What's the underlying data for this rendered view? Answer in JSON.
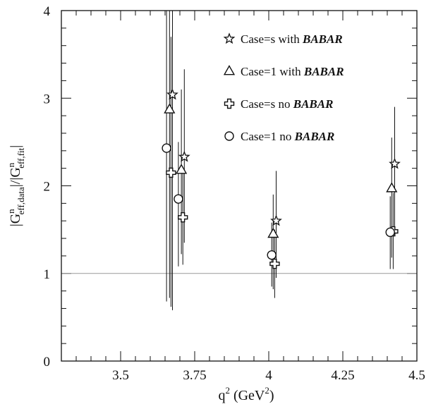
{
  "chart_data": {
    "type": "scatter",
    "xlabel": "q",
    "xlabel_sup": "2",
    "xlabel_unit_open": " (GeV",
    "xlabel_unit_sup": "2",
    "xlabel_unit_close": ")",
    "ylabel_parts": {
      "num_base": "|G",
      "num_sup": "n",
      "num_sub": "eff,data",
      "slash": "|/|G",
      "den_sup": "n",
      "den_sub": "eff,fit",
      "end": "|"
    },
    "xlim": [
      3.3,
      4.5
    ],
    "ylim": [
      0,
      4
    ],
    "x_ticks": [
      {
        "value": 3.5,
        "label": "3.5"
      },
      {
        "value": 3.75,
        "label": "3.75"
      },
      {
        "value": 4.0,
        "label": "4"
      },
      {
        "value": 4.25,
        "label": "4.25"
      },
      {
        "value": 4.5,
        "label": "4.5"
      }
    ],
    "y_ticks": [
      {
        "value": 0,
        "label": "0"
      },
      {
        "value": 1,
        "label": "1"
      },
      {
        "value": 2,
        "label": "2"
      },
      {
        "value": 3,
        "label": "3"
      },
      {
        "value": 4,
        "label": "4"
      }
    ],
    "reference_line": 1,
    "grid": false,
    "legend_placement": "top-right",
    "series": [
      {
        "name": "Case=s with BABAR",
        "name_prefix": "Case=s with ",
        "name_bold": "BABAR",
        "marker": "star",
        "points": [
          {
            "x": 3.675,
            "y": 3.04,
            "ylow": 0.58,
            "yhigh": 4.0
          },
          {
            "x": 3.715,
            "y": 2.33,
            "ylow": 1.35,
            "yhigh": 3.33
          },
          {
            "x": 4.025,
            "y": 1.6,
            "ylow": 0.95,
            "yhigh": 2.17
          },
          {
            "x": 4.425,
            "y": 2.25,
            "ylow": 1.5,
            "yhigh": 2.9
          }
        ]
      },
      {
        "name": "Case=1 with BABAR",
        "name_prefix": "Case=1 with ",
        "name_bold": "BABAR",
        "marker": "triangle",
        "points": [
          {
            "x": 3.665,
            "y": 2.87,
            "ylow": 0.72,
            "yhigh": 4.0
          },
          {
            "x": 3.705,
            "y": 2.18,
            "ylow": 1.22,
            "yhigh": 3.1
          },
          {
            "x": 4.015,
            "y": 1.45,
            "ylow": 0.82,
            "yhigh": 1.9
          },
          {
            "x": 4.415,
            "y": 1.97,
            "ylow": 1.18,
            "yhigh": 2.55
          }
        ]
      },
      {
        "name": "Case=s no BABAR",
        "name_prefix": "Case=s no ",
        "name_bold": "BABAR",
        "marker": "cross",
        "points": [
          {
            "x": 3.67,
            "y": 2.15,
            "ylow": 0.62,
            "yhigh": 3.7
          },
          {
            "x": 3.71,
            "y": 1.64,
            "ylow": 1.1,
            "yhigh": 2.2
          },
          {
            "x": 4.02,
            "y": 1.11,
            "ylow": 0.72,
            "yhigh": 1.5
          },
          {
            "x": 4.42,
            "y": 1.48,
            "ylow": 1.05,
            "yhigh": 1.92
          }
        ]
      },
      {
        "name": "Case=1 no BABAR",
        "name_prefix": "Case=1 no ",
        "name_bold": "BABAR",
        "marker": "circle",
        "points": [
          {
            "x": 3.655,
            "y": 2.43,
            "ylow": 0.68,
            "yhigh": 4.0
          },
          {
            "x": 3.695,
            "y": 1.85,
            "ylow": 1.08,
            "yhigh": 2.5
          },
          {
            "x": 4.01,
            "y": 1.21,
            "ylow": 0.85,
            "yhigh": 1.58
          },
          {
            "x": 4.41,
            "y": 1.47,
            "ylow": 1.05,
            "yhigh": 1.88
          }
        ]
      }
    ]
  }
}
